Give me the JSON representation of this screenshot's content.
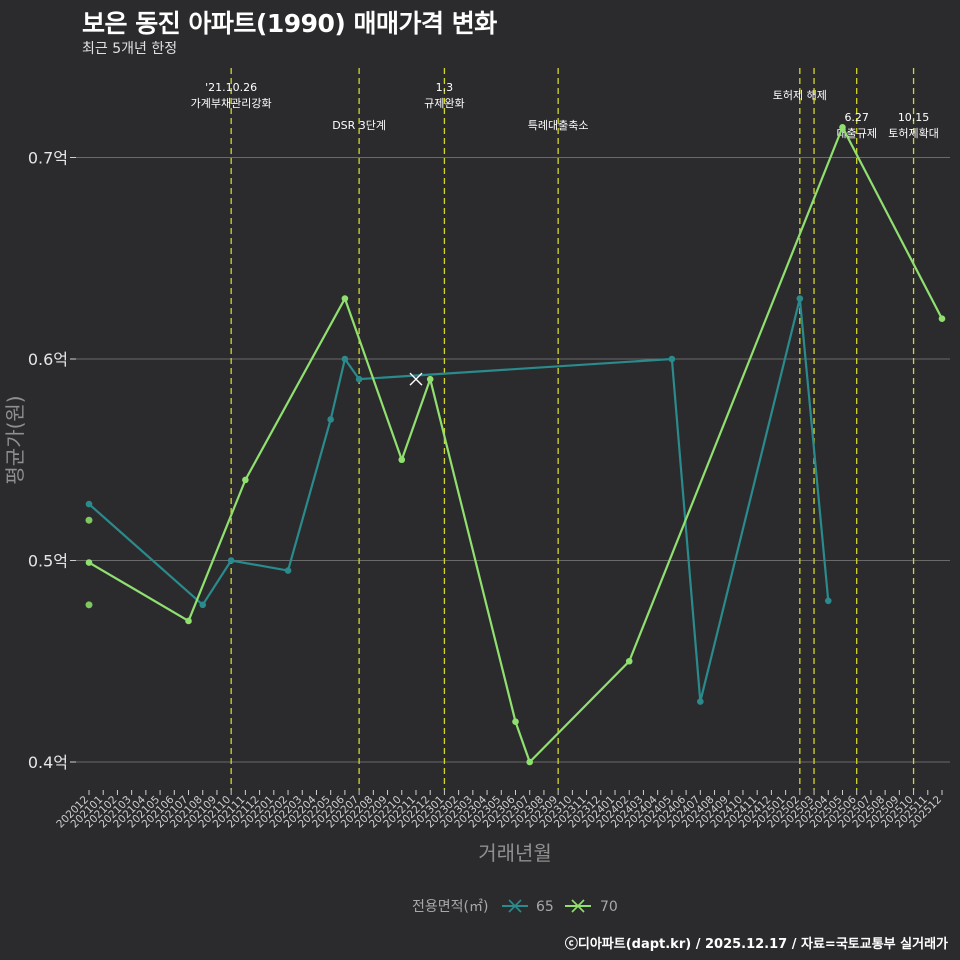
{
  "title": "보은 동진 아파트(1990) 매매가격 변화",
  "subtitle": "최근 5개년 한정",
  "footer": "ⓒ디아파트(dapt.kr) / 2025.12.17 / 자료=국토교통부 실거래가",
  "colors": {
    "background": "#2b2b2d",
    "grid": "#6a6a6a",
    "vline": "#d4d62a",
    "s65": "#2a8a8c",
    "s70": "#90e070",
    "dots": "#7fc860"
  },
  "chart_data": {
    "type": "line",
    "xlabel": "거래년월",
    "ylabel": "평균가(원)",
    "ylim": [
      0.385,
      0.745
    ],
    "yticks": [
      {
        "value": 0.4,
        "label": "0.4억"
      },
      {
        "value": 0.5,
        "label": "0.5억"
      },
      {
        "value": 0.6,
        "label": "0.6억"
      },
      {
        "value": 0.7,
        "label": "0.7억"
      }
    ],
    "categories": [
      "202012",
      "202101",
      "202102",
      "202103",
      "202104",
      "202105",
      "202106",
      "202107",
      "202108",
      "202109",
      "202110",
      "202111",
      "202112",
      "202201",
      "202202",
      "202203",
      "202204",
      "202205",
      "202206",
      "202207",
      "202208",
      "202209",
      "202210",
      "202211",
      "202212",
      "202301",
      "202302",
      "202303",
      "202304",
      "202305",
      "202306",
      "202307",
      "202308",
      "202309",
      "202310",
      "202311",
      "202312",
      "202401",
      "202402",
      "202403",
      "202404",
      "202405",
      "202406",
      "202407",
      "202408",
      "202409",
      "202410",
      "202411",
      "202412",
      "202501",
      "202502",
      "202503",
      "202504",
      "202505",
      "202506",
      "202507",
      "202508",
      "202509",
      "202510",
      "202511",
      "202512"
    ],
    "series": [
      {
        "name": "65",
        "points": [
          {
            "x": "202012",
            "y": 0.528
          },
          {
            "x": "202108",
            "y": 0.478
          },
          {
            "x": "202110",
            "y": 0.5
          },
          {
            "x": "202202",
            "y": 0.495
          },
          {
            "x": "202205",
            "y": 0.57
          },
          {
            "x": "202206",
            "y": 0.6
          },
          {
            "x": "202207",
            "y": 0.59
          },
          {
            "x": "202405",
            "y": 0.6
          },
          {
            "x": "202407",
            "y": 0.43
          },
          {
            "x": "202502",
            "y": 0.63
          },
          {
            "x": "202504",
            "y": 0.48
          }
        ]
      },
      {
        "name": "70",
        "points": [
          {
            "x": "202012",
            "y": 0.499
          },
          {
            "x": "202107",
            "y": 0.47
          },
          {
            "x": "202111",
            "y": 0.54
          },
          {
            "x": "202206",
            "y": 0.63
          },
          {
            "x": "202210",
            "y": 0.55
          },
          {
            "x": "202212",
            "y": 0.59
          },
          {
            "x": "202306",
            "y": 0.42
          },
          {
            "x": "202307",
            "y": 0.4
          },
          {
            "x": "202402",
            "y": 0.45
          },
          {
            "x": "202505",
            "y": 0.715
          },
          {
            "x": "202512",
            "y": 0.62
          }
        ]
      }
    ],
    "extra_points": [
      {
        "x": "202012",
        "y": 0.52
      },
      {
        "x": "202012",
        "y": 0.478
      }
    ],
    "cross_marker": {
      "x": "202211",
      "y": 0.59
    },
    "vlines": [
      {
        "x": "202110",
        "lines": [
          "'21.10.26",
          "가계부채관리강화"
        ],
        "row": 0
      },
      {
        "x": "202207",
        "lines": [
          "DSR 3단계"
        ],
        "row": 2
      },
      {
        "x": "202301",
        "lines": [
          "1.3",
          "규제완화"
        ],
        "row": 0
      },
      {
        "x": "202309",
        "lines": [
          "특례대출축소"
        ],
        "row": 2
      },
      {
        "x": "202502",
        "lines": [
          "토허제 해제"
        ],
        "row": 1
      },
      {
        "x": "202503",
        "lines": [],
        "row": 1
      },
      {
        "x": "202506",
        "lines": [
          "6.27",
          "대출규제"
        ],
        "row": 3
      },
      {
        "x": "202510",
        "lines": [
          "10.15",
          "토허제확대"
        ],
        "row": 3
      }
    ],
    "legend": {
      "title": "전용면적(㎡)",
      "items": [
        "65",
        "70"
      ]
    }
  }
}
